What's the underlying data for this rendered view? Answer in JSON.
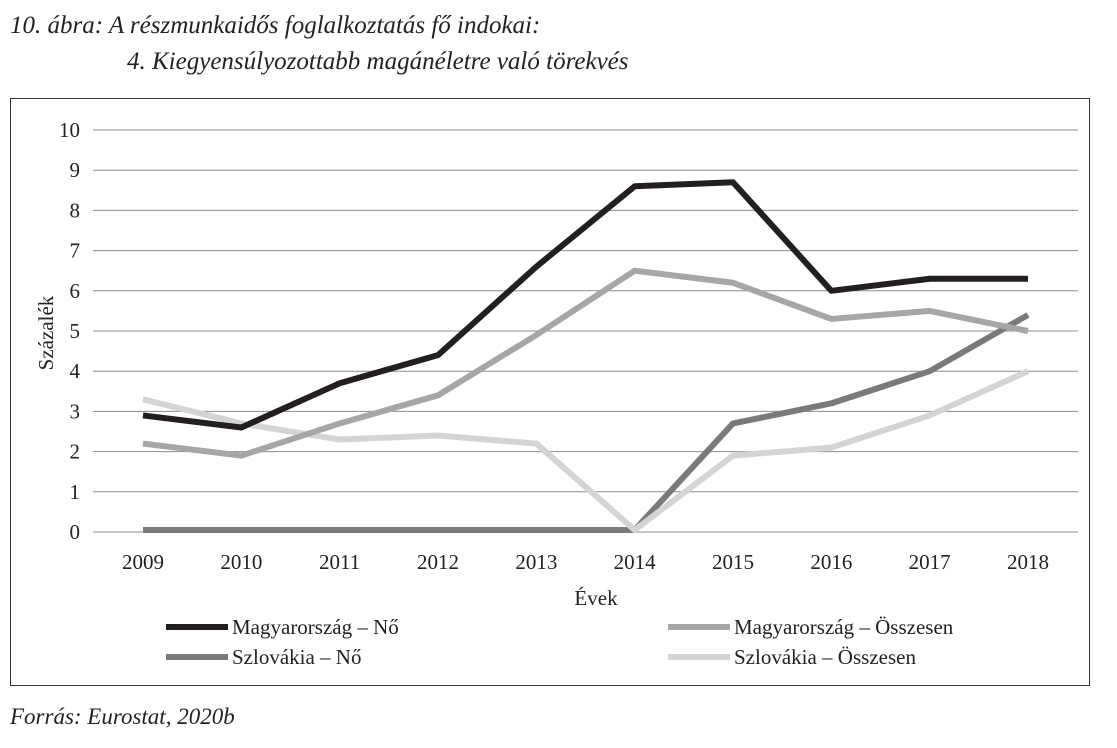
{
  "figure": {
    "caption_line1": "10. ábra: A részmunkaidős foglalkoztatás fő indokai:",
    "caption_line2": "4. Kiegyensúlyozottabb magánéletre való törekvés",
    "source": "Forrás: Eurostat, 2020b"
  },
  "chart_data": {
    "type": "line",
    "title": "",
    "xlabel": "Évek",
    "ylabel": "Százalék",
    "ylim": [
      0,
      10
    ],
    "yticks": [
      0,
      1,
      2,
      3,
      4,
      5,
      6,
      7,
      8,
      9,
      10
    ],
    "grid": "horizontal",
    "legend_position": "bottom",
    "categories": [
      "2009",
      "2010",
      "2011",
      "2012",
      "2013",
      "2014",
      "2015",
      "2016",
      "2017",
      "2018"
    ],
    "series": [
      {
        "name": "Magyarország – Nő",
        "color": "#231f20",
        "values": [
          2.9,
          2.6,
          3.7,
          4.4,
          6.6,
          8.6,
          8.7,
          6.0,
          6.3,
          6.3
        ]
      },
      {
        "name": "Magyarország – Összesen",
        "color": "#a6a6a6",
        "values": [
          2.2,
          1.9,
          2.7,
          3.4,
          4.9,
          6.5,
          6.2,
          5.3,
          5.5,
          5.0
        ]
      },
      {
        "name": "Szlovákia – Nő",
        "color": "#7a7a7a",
        "values": [
          0.05,
          0.05,
          0.05,
          0.05,
          0.05,
          0.05,
          2.7,
          3.2,
          4.0,
          5.4
        ]
      },
      {
        "name": "Szlovákia – Összesen",
        "color": "#d4d4d4",
        "values": [
          3.3,
          2.7,
          2.3,
          2.4,
          2.2,
          0.05,
          1.9,
          2.1,
          2.9,
          4.0
        ]
      }
    ]
  }
}
